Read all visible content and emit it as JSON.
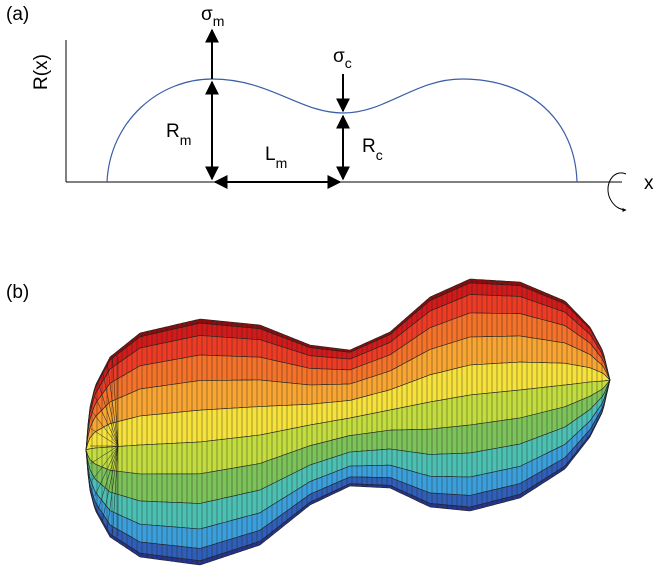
{
  "panel_a": {
    "label": "(a)",
    "y_axis_label": "R(x)",
    "x_axis_label": "x",
    "sigma_m": {
      "symbol": "σ",
      "subscript": "m"
    },
    "sigma_c": {
      "symbol": "σ",
      "subscript": "c"
    },
    "R_m": {
      "symbol": "R",
      "subscript": "m"
    },
    "L_m": {
      "symbol": "L",
      "subscript": "m"
    },
    "R_c": {
      "symbol": "R",
      "subscript": "c"
    }
  },
  "panel_b": {
    "label": "(b)"
  }
}
